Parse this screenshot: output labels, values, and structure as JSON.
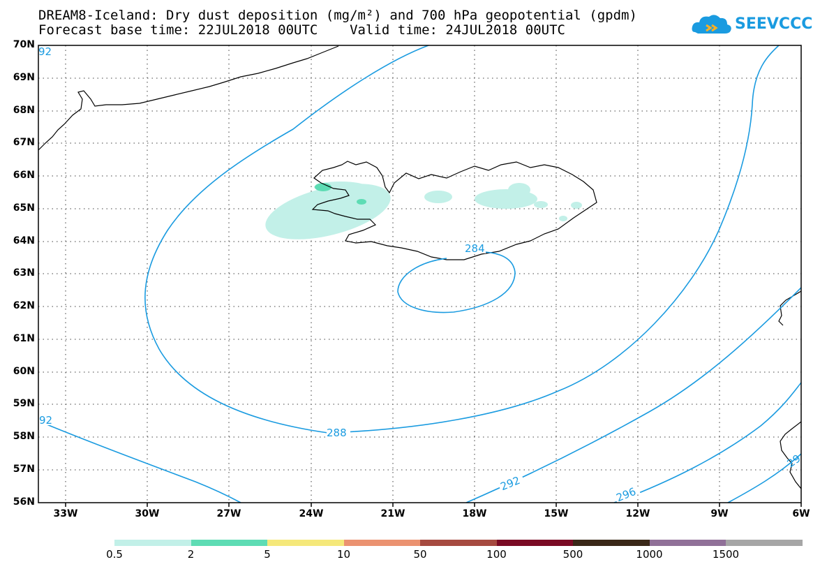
{
  "header": {
    "title_line1": "DREAM8-Iceland: Dry dust deposition (mg/m²) and 700 hPa geopotential (gpdm)",
    "title_line2": "Forecast base time: 22JUL2018 00UTC    Valid time: 24JUL2018 00UTC"
  },
  "logo": {
    "text": "SEEVCCC",
    "icon": "cloud-icon",
    "color": "#1a9be0"
  },
  "axes": {
    "lat_labels": [
      "70N",
      "69N",
      "68N",
      "67N",
      "66N",
      "65N",
      "64N",
      "63N",
      "62N",
      "61N",
      "60N",
      "59N",
      "58N",
      "57N",
      "56N"
    ],
    "lon_labels": [
      "33W",
      "30W",
      "27W",
      "24W",
      "21W",
      "18W",
      "15W",
      "12W",
      "9W",
      "6W"
    ]
  },
  "contours": {
    "color": "#1a9be0",
    "labels": [
      "92",
      "284",
      "288",
      "92",
      "292",
      "296",
      "29"
    ]
  },
  "colorbar": {
    "colors": [
      "#c2f0e8",
      "#5edcb4",
      "#f5e87a",
      "#eb9270",
      "#a64a40",
      "#7a0a24",
      "#3a2818",
      "#907098",
      "#a6a6a6"
    ],
    "labels": [
      "0.5",
      "2",
      "5",
      "10",
      "50",
      "100",
      "500",
      "1000",
      "1500"
    ]
  }
}
